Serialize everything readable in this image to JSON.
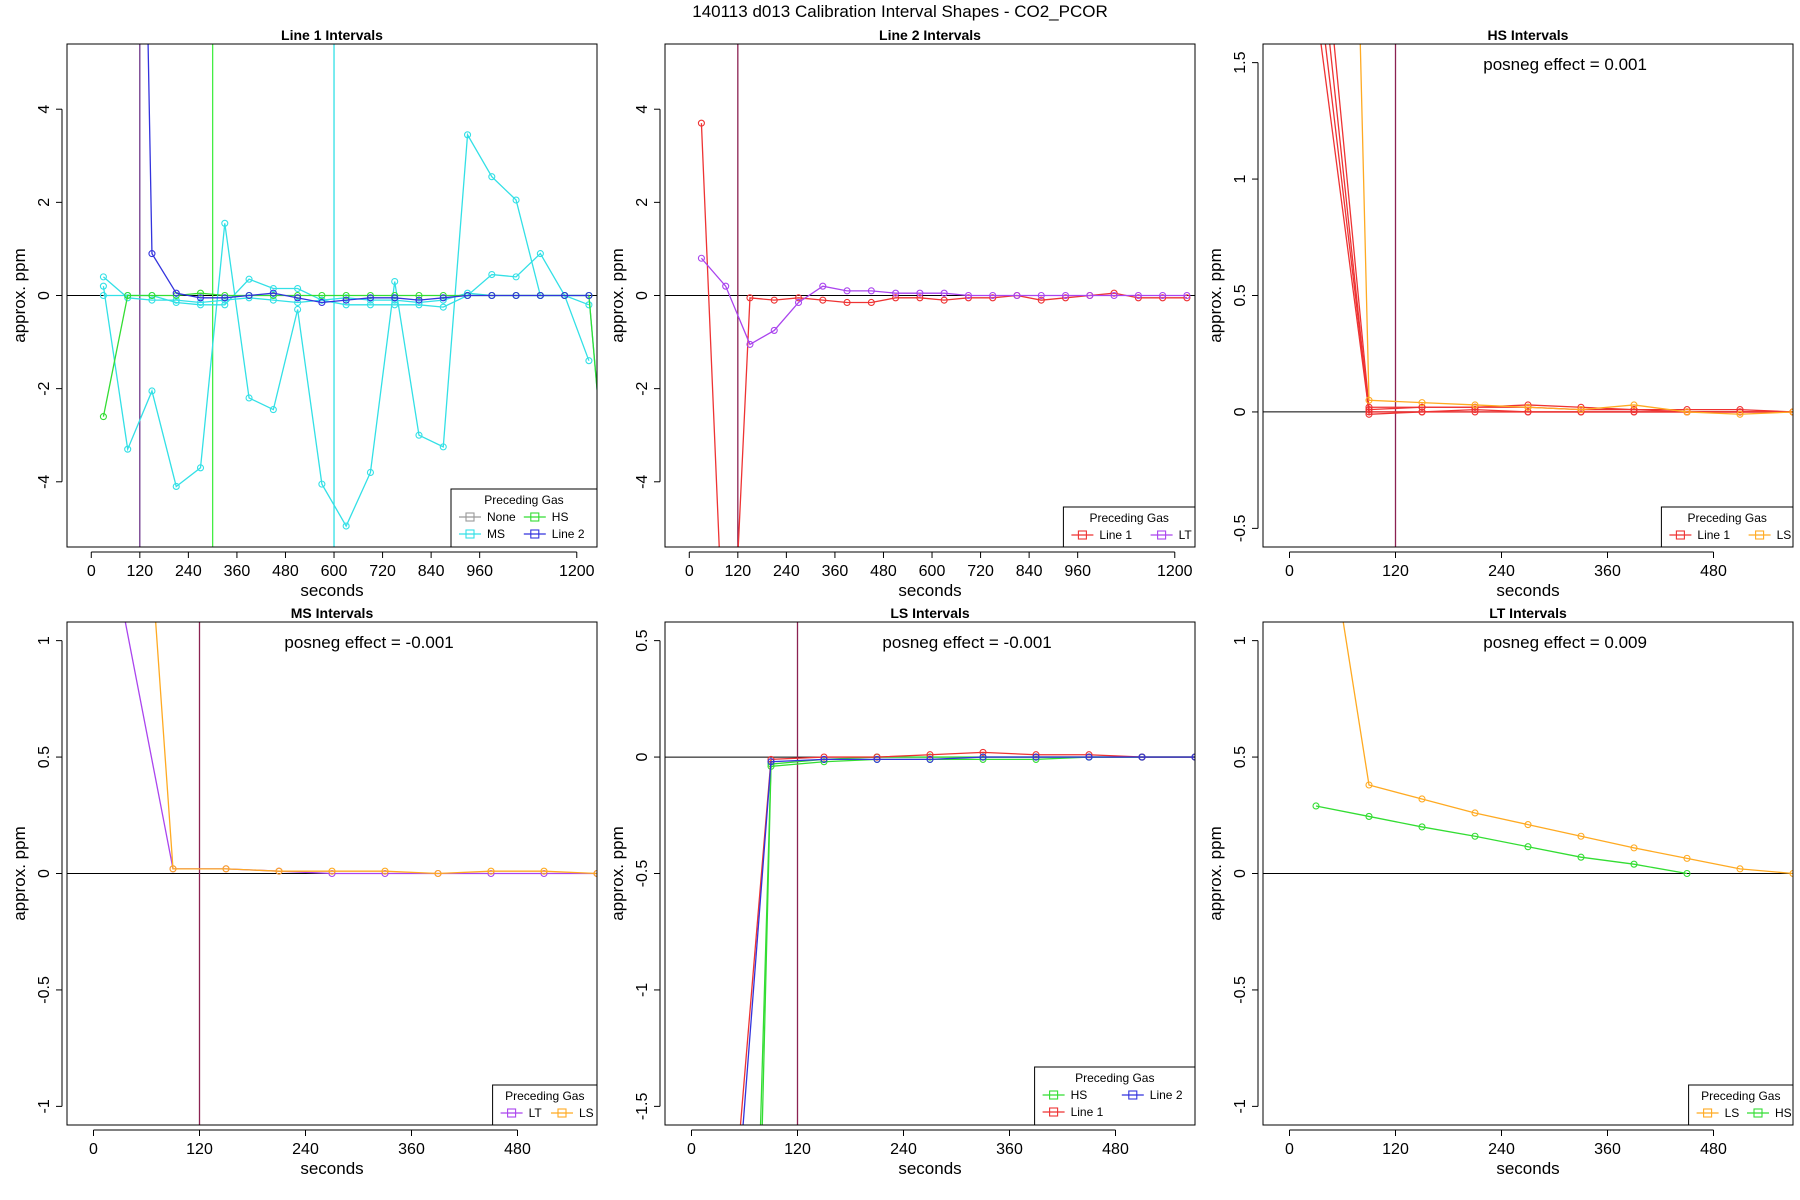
{
  "suptitle": "140113  d013   Calibration Interval Shapes - CO2_PCOR",
  "chart_data": [
    {
      "type": "line",
      "title": "Line 1 Intervals",
      "xlabel": "seconds",
      "ylabel": "approx. ppm",
      "xlim": [
        -60,
        1250
      ],
      "ylim": [
        -5.4,
        5.4
      ],
      "xticks": [
        0,
        120,
        240,
        360,
        480,
        600,
        720,
        840,
        960,
        1200
      ],
      "yticks": [
        -4,
        -2,
        0,
        2,
        4
      ],
      "vlines": [
        {
          "x": 120,
          "color": "#8b2252"
        },
        {
          "x": 120,
          "color": "#7b4f9d"
        },
        {
          "x": 300,
          "color": "#44ee44"
        },
        {
          "x": 600,
          "color": "#33e0e6"
        }
      ],
      "annotation": "",
      "legend": {
        "title": "Preceding Gas",
        "position": "bottom-right",
        "columns": 2,
        "entries": [
          {
            "name": "None",
            "color": "#999999"
          },
          {
            "name": "HS",
            "color": "#33dd33"
          },
          {
            "name": "MS",
            "color": "#33e0e6"
          },
          {
            "name": "Line 2",
            "color": "#3333dd"
          }
        ]
      },
      "series": [
        {
          "name": "MS",
          "color": "#33e0e6",
          "x": [
            30,
            90,
            150,
            210,
            270,
            330,
            390,
            450,
            510,
            570,
            630,
            690,
            750,
            810,
            870,
            930,
            990,
            1050,
            1110,
            1170,
            1230,
            1260
          ],
          "y": [
            0.4,
            -0.05,
            -0.1,
            -0.1,
            -0.15,
            -0.1,
            -0.05,
            -0.1,
            -0.15,
            -0.1,
            -0.05,
            -0.1,
            -0.1,
            -0.15,
            -0.1,
            0.05,
            0.0,
            0.0,
            0.0,
            0.0,
            0.0,
            -3.0
          ]
        },
        {
          "name": "MS",
          "color": "#33e0e6",
          "x": [
            30,
            90,
            150,
            210,
            270,
            330,
            390,
            450,
            510,
            570,
            630,
            690,
            750,
            810,
            870,
            930,
            990,
            1050,
            1110,
            1170,
            1230
          ],
          "y": [
            0.2,
            -3.3,
            -2.05,
            -4.1,
            -3.7,
            1.55,
            -2.2,
            -2.45,
            -0.3,
            -4.05,
            -4.95,
            -3.8,
            0.3,
            -3.0,
            -3.25,
            3.45,
            2.55,
            2.05,
            0.0,
            0.0,
            -1.4
          ]
        },
        {
          "name": "MS",
          "color": "#33e0e6",
          "x": [
            30,
            90,
            150,
            210,
            270,
            330,
            390,
            450,
            510,
            570,
            630,
            690,
            750,
            810,
            870,
            930,
            990,
            1050,
            1110,
            1170,
            1230
          ],
          "y": [
            0.0,
            0.0,
            0.0,
            -0.15,
            -0.2,
            -0.2,
            0.35,
            0.15,
            0.15,
            -0.1,
            -0.2,
            -0.2,
            -0.2,
            -0.2,
            -0.25,
            0.0,
            0.45,
            0.4,
            0.9,
            0.0,
            -0.2
          ]
        },
        {
          "name": "HS",
          "color": "#33dd33",
          "x": [
            30,
            90,
            150,
            210,
            270,
            330,
            390,
            450,
            510,
            570,
            630,
            690,
            750,
            810,
            870,
            930,
            990,
            1050,
            1110,
            1170,
            1230,
            1260
          ],
          "y": [
            -2.6,
            0.0,
            0.0,
            0.0,
            0.05,
            0.0,
            0.0,
            0.0,
            0.0,
            0.0,
            0.0,
            0.0,
            0.0,
            0.0,
            0.0,
            0.0,
            0.0,
            0.0,
            0.0,
            0.0,
            0.0,
            -3.0
          ]
        },
        {
          "name": "Line 2",
          "color": "#3333dd",
          "x": [
            140,
            150,
            210,
            270,
            330,
            390,
            450,
            510,
            570,
            630,
            690,
            750,
            810,
            870,
            930,
            990,
            1050,
            1110,
            1170,
            1230
          ],
          "y": [
            5.6,
            0.9,
            0.05,
            -0.05,
            -0.05,
            0.0,
            0.05,
            -0.05,
            -0.15,
            -0.1,
            -0.05,
            -0.05,
            -0.1,
            -0.05,
            0.0,
            0.0,
            0.0,
            0.0,
            0.0,
            0.0
          ]
        }
      ]
    },
    {
      "type": "line",
      "title": "Line 2 Intervals",
      "xlabel": "seconds",
      "ylabel": "approx. ppm",
      "xlim": [
        -60,
        1250
      ],
      "ylim": [
        -5.4,
        5.4
      ],
      "xticks": [
        0,
        120,
        240,
        360,
        480,
        600,
        720,
        840,
        960,
        1200
      ],
      "yticks": [
        -4,
        -2,
        0,
        2,
        4
      ],
      "vlines": [
        {
          "x": 120,
          "color": "#8b2252"
        }
      ],
      "annotation": "",
      "legend": {
        "title": "Preceding Gas",
        "position": "bottom-right",
        "columns": 2,
        "entries": [
          {
            "name": "Line 1",
            "color": "#ee3333"
          },
          {
            "name": "LT",
            "color": "#aa44ee"
          }
        ]
      },
      "series": [
        {
          "name": "Line 1",
          "color": "#ee3333",
          "x": [
            30,
            75,
            120,
            150,
            210,
            270,
            330,
            390,
            450,
            510,
            570,
            630,
            690,
            750,
            810,
            870,
            930,
            990,
            1050,
            1110,
            1170,
            1230
          ],
          "y": [
            3.7,
            -5.6,
            -5.6,
            -0.05,
            -0.1,
            -0.05,
            -0.1,
            -0.15,
            -0.15,
            -0.05,
            -0.05,
            -0.1,
            -0.05,
            -0.05,
            0.0,
            -0.1,
            -0.05,
            0.0,
            0.05,
            -0.05,
            -0.05,
            -0.05
          ]
        },
        {
          "name": "LT",
          "color": "#aa44ee",
          "x": [
            30,
            90,
            150,
            210,
            270,
            330,
            390,
            450,
            510,
            570,
            630,
            690,
            750,
            810,
            870,
            930,
            990,
            1050,
            1110,
            1170,
            1230
          ],
          "y": [
            0.8,
            0.2,
            -1.05,
            -0.75,
            -0.15,
            0.2,
            0.1,
            0.1,
            0.05,
            0.05,
            0.05,
            0.0,
            0.0,
            0.0,
            0.0,
            0.0,
            0.0,
            0.0,
            0.0,
            0.0,
            0.0
          ]
        }
      ]
    },
    {
      "type": "line",
      "title": "HS Intervals",
      "xlabel": "seconds",
      "ylabel": "approx. ppm",
      "xlim": [
        -30,
        570
      ],
      "ylim": [
        -0.58,
        1.58
      ],
      "xticks": [
        0,
        120,
        240,
        360,
        480
      ],
      "yticks": [
        -0.5,
        0.0,
        0.5,
        1.0,
        1.5
      ],
      "vlines": [
        {
          "x": 120,
          "color": "#8b2252"
        }
      ],
      "annotation": "posneg effect = 0.001",
      "legend": {
        "title": "Preceding Gas",
        "position": "bottom-right",
        "columns": 2,
        "entries": [
          {
            "name": "Line 1",
            "color": "#ee3333"
          },
          {
            "name": "LS",
            "color": "#ffaa22"
          }
        ]
      },
      "series": [
        {
          "name": "Line 1",
          "color": "#ee3333",
          "x": [
            35,
            90,
            150,
            210,
            270,
            330,
            390,
            450,
            510,
            570
          ],
          "y": [
            1.6,
            0.0,
            0.0,
            0.0,
            0.0,
            0.0,
            0.0,
            0.0,
            0.0,
            0.0
          ]
        },
        {
          "name": "Line 1",
          "color": "#ee3333",
          "x": [
            40,
            90,
            150,
            210,
            270,
            330,
            390,
            450,
            510,
            570
          ],
          "y": [
            1.6,
            0.01,
            0.02,
            0.02,
            0.03,
            0.02,
            0.01,
            0.01,
            0.01,
            0.0
          ]
        },
        {
          "name": "Line 1",
          "color": "#ee3333",
          "x": [
            50,
            90,
            150,
            210,
            270,
            330,
            390,
            450,
            510,
            570
          ],
          "y": [
            1.6,
            0.02,
            0.02,
            0.02,
            0.02,
            0.01,
            0.01,
            0.0,
            0.0,
            0.0
          ]
        },
        {
          "name": "Line 1",
          "color": "#ee3333",
          "x": [
            45,
            90,
            150,
            210,
            270,
            330,
            390,
            450,
            510,
            570
          ],
          "y": [
            1.6,
            -0.01,
            0.0,
            0.01,
            0.0,
            0.0,
            0.0,
            0.0,
            0.0,
            0.0
          ]
        },
        {
          "name": "LS",
          "color": "#ffaa22",
          "x": [
            80,
            90,
            150,
            210,
            270,
            330,
            390,
            450,
            510,
            570
          ],
          "y": [
            1.6,
            0.05,
            0.04,
            0.03,
            0.02,
            0.01,
            0.03,
            0.0,
            -0.01,
            0.0
          ]
        }
      ]
    },
    {
      "type": "line",
      "title": "MS Intervals",
      "xlabel": "seconds",
      "ylabel": "approx. ppm",
      "xlim": [
        -30,
        570
      ],
      "ylim": [
        -1.08,
        1.08
      ],
      "xticks": [
        0,
        120,
        240,
        360,
        480
      ],
      "yticks": [
        -1.0,
        -0.5,
        0.0,
        0.5,
        1.0
      ],
      "vlines": [
        {
          "x": 120,
          "color": "#8b2252"
        }
      ],
      "annotation": "posneg effect = -0.001",
      "legend": {
        "title": "Preceding Gas",
        "position": "bottom-right",
        "columns": 2,
        "entries": [
          {
            "name": "LT",
            "color": "#aa44ee"
          },
          {
            "name": "LS",
            "color": "#ffaa22"
          }
        ]
      },
      "series": [
        {
          "name": "LT",
          "color": "#aa44ee",
          "x": [
            35,
            90,
            150,
            210,
            270,
            330,
            390,
            450,
            510,
            570
          ],
          "y": [
            1.1,
            0.02,
            0.02,
            0.01,
            0.0,
            0.0,
            0.0,
            0.0,
            0.0,
            0.0
          ]
        },
        {
          "name": "LS",
          "color": "#ffaa22",
          "x": [
            70,
            90,
            150,
            210,
            270,
            330,
            390,
            450,
            510,
            570
          ],
          "y": [
            1.1,
            0.02,
            0.02,
            0.01,
            0.01,
            0.01,
            0.0,
            0.01,
            0.01,
            0.0
          ]
        }
      ]
    },
    {
      "type": "line",
      "title": "LS Intervals",
      "xlabel": "seconds",
      "ylabel": "approx. ppm",
      "xlim": [
        -30,
        570
      ],
      "ylim": [
        -1.58,
        0.58
      ],
      "xticks": [
        0,
        120,
        240,
        360,
        480
      ],
      "yticks": [
        -1.5,
        -1.0,
        -0.5,
        0.0,
        0.5
      ],
      "vlines": [
        {
          "x": 120,
          "color": "#8b2252"
        }
      ],
      "annotation": "posneg effect = -0.001",
      "legend": {
        "title": "Preceding Gas",
        "position": "bottom-right",
        "columns": 2,
        "entries": [
          {
            "name": "HS",
            "color": "#33dd33"
          },
          {
            "name": "Line 2",
            "color": "#3333dd"
          },
          {
            "name": "Line 1",
            "color": "#ee3333"
          }
        ]
      },
      "series": [
        {
          "name": "HS",
          "color": "#33dd33",
          "x": [
            80,
            90,
            150,
            210,
            270,
            330,
            390,
            450,
            510,
            570
          ],
          "y": [
            -1.6,
            -0.04,
            -0.02,
            -0.01,
            -0.01,
            -0.01,
            -0.01,
            0.0,
            0.0,
            0.0
          ]
        },
        {
          "name": "HS",
          "color": "#33dd33",
          "x": [
            78,
            90,
            150,
            210,
            270,
            330,
            390,
            450,
            510,
            570
          ],
          "y": [
            -1.6,
            -0.03,
            -0.01,
            0.0,
            0.0,
            0.0,
            0.0,
            0.0,
            0.0,
            0.0
          ]
        },
        {
          "name": "Line 1",
          "color": "#ee3333",
          "x": [
            55,
            90,
            150,
            210,
            270,
            330,
            390,
            450,
            510,
            570
          ],
          "y": [
            -1.6,
            -0.01,
            0.0,
            0.0,
            0.01,
            0.02,
            0.01,
            0.01,
            0.0,
            0.0
          ]
        },
        {
          "name": "Line 2",
          "color": "#3333dd",
          "x": [
            58,
            90,
            150,
            210,
            270,
            330,
            390,
            450,
            510,
            570
          ],
          "y": [
            -1.6,
            -0.02,
            -0.01,
            -0.01,
            -0.01,
            0.0,
            0.0,
            0.0,
            0.0,
            0.0
          ]
        }
      ]
    },
    {
      "type": "line",
      "title": "LT Intervals",
      "xlabel": "seconds",
      "ylabel": "approx. ppm",
      "xlim": [
        -30,
        570
      ],
      "ylim": [
        -1.08,
        1.08
      ],
      "xticks": [
        0,
        120,
        240,
        360,
        480
      ],
      "yticks": [
        -1.0,
        -0.5,
        0.0,
        0.5,
        1.0
      ],
      "vlines": [],
      "annotation": "posneg effect = 0.009",
      "legend": {
        "title": "Preceding Gas",
        "position": "bottom-right",
        "columns": 2,
        "entries": [
          {
            "name": "LS",
            "color": "#ffaa22"
          },
          {
            "name": "HS",
            "color": "#33dd33"
          }
        ]
      },
      "series": [
        {
          "name": "LS",
          "color": "#ffaa22",
          "x": [
            60,
            90,
            150,
            210,
            270,
            330,
            390,
            450,
            510,
            570
          ],
          "y": [
            1.1,
            0.38,
            0.32,
            0.26,
            0.21,
            0.16,
            0.11,
            0.065,
            0.02,
            0.0
          ]
        },
        {
          "name": "HS",
          "color": "#33dd33",
          "x": [
            30,
            90,
            150,
            210,
            270,
            330,
            390,
            450
          ],
          "y": [
            0.29,
            0.245,
            0.2,
            0.16,
            0.115,
            0.07,
            0.04,
            0.0
          ]
        }
      ]
    }
  ]
}
